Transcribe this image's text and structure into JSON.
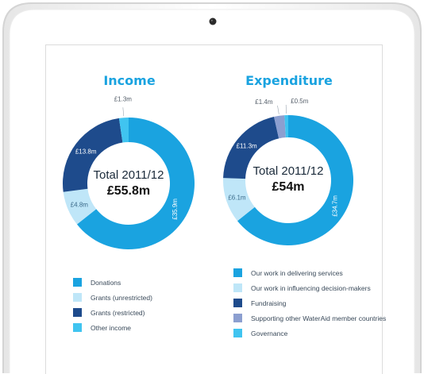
{
  "chart_data": [
    {
      "type": "pie",
      "title": "Income",
      "center_label": "Total 2011/12",
      "center_value": "£55.8m",
      "slices": [
        {
          "name": "Donations",
          "value": 35.9,
          "label": "£35.9m",
          "color": "#1aa3e0"
        },
        {
          "name": "Grants (unrestricted)",
          "value": 4.8,
          "label": "£4.8m",
          "color": "#bfe6f8"
        },
        {
          "name": "Grants (restricted)",
          "value": 13.8,
          "label": "£13.8m",
          "color": "#1e4b8c"
        },
        {
          "name": "Other income",
          "value": 1.3,
          "label": "£1.3m",
          "color": "#40c4f0"
        }
      ]
    },
    {
      "type": "pie",
      "title": "Expenditure",
      "center_label": "Total 2011/12",
      "center_value": "£54m",
      "slices": [
        {
          "name": "Our work in delivering services",
          "value": 34.7,
          "label": "£34.7m",
          "color": "#1aa3e0"
        },
        {
          "name": "Our work in influencing decision-makers",
          "value": 6.1,
          "label": "£6.1m",
          "color": "#bfe6f8"
        },
        {
          "name": "Fundraising",
          "value": 11.3,
          "label": "£11.3m",
          "color": "#1e4b8c"
        },
        {
          "name": "Supporting other WaterAid member countries",
          "value": 1.4,
          "label": "£1.4m",
          "color": "#8c9fd0"
        },
        {
          "name": "Governance",
          "value": 0.5,
          "label": "£0.5m",
          "color": "#40c4f0"
        }
      ]
    }
  ]
}
